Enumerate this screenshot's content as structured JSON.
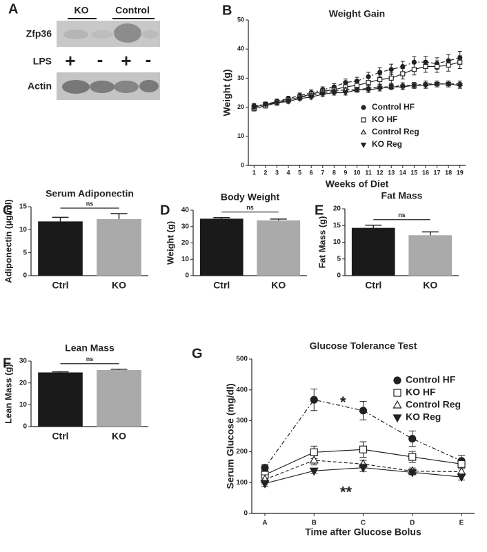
{
  "blot": {
    "panel_label": "A",
    "groups": [
      "KO",
      "Control"
    ],
    "rows": [
      "Zfp36",
      "LPS",
      "Actin"
    ],
    "lps": [
      "+",
      "-",
      "+",
      "-"
    ]
  },
  "chart_data": [
    {
      "type": "line",
      "panel_label": "B",
      "title": "Weight Gain",
      "x_label": "Weeks of Diet",
      "y_label": "Weight (g)",
      "x": [
        1,
        2,
        3,
        4,
        5,
        6,
        7,
        8,
        9,
        10,
        11,
        12,
        13,
        14,
        15,
        16,
        17,
        18,
        19
      ],
      "xlim": [
        0.5,
        19.5
      ],
      "xticks": [
        1,
        2,
        3,
        4,
        5,
        6,
        7,
        8,
        9,
        10,
        11,
        12,
        13,
        14,
        15,
        16,
        17,
        18,
        19
      ],
      "ylim": [
        0,
        50
      ],
      "yticks": [
        0,
        10,
        20,
        30,
        40,
        50
      ],
      "legend": "lower right",
      "series": [
        {
          "name": "Control HF",
          "color": "#222222",
          "marker": "circle",
          "filled": true,
          "line_style": "dashdot",
          "values": [
            20.5,
            21,
            22,
            23,
            24,
            25,
            26,
            27,
            28.5,
            29,
            30.5,
            32,
            33,
            34,
            35.5,
            35.5,
            35,
            36,
            37
          ],
          "errors": [
            0.8,
            0.8,
            0.8,
            0.8,
            0.9,
            1,
            1,
            1.1,
            1.2,
            1.3,
            1.5,
            1.6,
            1.8,
            1.8,
            1.9,
            2,
            2,
            2.1,
            2.2
          ]
        },
        {
          "name": "KO HF",
          "color": "#222222",
          "marker": "square",
          "filled": false,
          "line_style": "solid",
          "values": [
            19.5,
            20.5,
            21.5,
            22.5,
            23.5,
            24.5,
            25.5,
            26,
            27,
            27.5,
            28.5,
            29.5,
            30,
            31.5,
            33,
            34,
            34,
            34.5,
            35.5
          ],
          "errors": [
            0.8,
            0.8,
            0.8,
            0.8,
            0.9,
            1,
            1,
            1.1,
            1.2,
            1.3,
            1.5,
            1.6,
            1.8,
            1.8,
            1.9,
            2,
            2,
            2.1,
            2.2
          ]
        },
        {
          "name": "Control Reg",
          "color": "#222222",
          "marker": "triangle",
          "filled": false,
          "line_style": "dashed",
          "values": [
            20,
            21,
            22,
            22.5,
            23.5,
            24,
            25,
            25.5,
            26,
            26,
            26.5,
            27,
            27,
            27.5,
            27.5,
            28,
            28,
            28,
            28
          ],
          "errors": [
            0.6,
            0.6,
            0.6,
            0.7,
            0.7,
            0.7,
            0.8,
            0.8,
            0.8,
            0.8,
            0.9,
            0.9,
            0.9,
            0.9,
            1,
            1,
            1,
            1,
            1
          ]
        },
        {
          "name": "KO Reg",
          "color": "#222222",
          "marker": "invtriangle",
          "filled": true,
          "line_style": "solid",
          "values": [
            20,
            21,
            21.5,
            22,
            23,
            23.5,
            24.5,
            25,
            25,
            26,
            26,
            26.5,
            27,
            27,
            27.5,
            27.5,
            28,
            28,
            27.5
          ],
          "errors": [
            0.6,
            0.6,
            0.6,
            0.7,
            0.7,
            0.7,
            0.8,
            0.8,
            0.8,
            0.8,
            0.9,
            0.9,
            0.9,
            0.9,
            1,
            1,
            1,
            1,
            1
          ]
        }
      ]
    },
    {
      "type": "bar",
      "panel_label": "C",
      "title": "Serum Adiponectin",
      "y_label": "Adiponectin (µg/ml)",
      "categories": [
        "Ctrl",
        "KO"
      ],
      "values": [
        11.8,
        12.3
      ],
      "errors": [
        0.9,
        1.2
      ],
      "colors": [
        "#1a1a1a",
        "#aaaaaa"
      ],
      "ylim": [
        0,
        15
      ],
      "yticks": [
        0,
        5,
        10,
        15
      ],
      "annotation": "ns"
    },
    {
      "type": "bar",
      "panel_label": "D",
      "title": "Body Weight",
      "y_label": "Weight (g)",
      "categories": [
        "Ctrl",
        "KO"
      ],
      "values": [
        34.8,
        33.8
      ],
      "errors": [
        0.7,
        0.8
      ],
      "colors": [
        "#1a1a1a",
        "#aaaaaa"
      ],
      "ylim": [
        0,
        40
      ],
      "yticks": [
        0,
        10,
        20,
        30,
        40
      ],
      "annotation": "ns"
    },
    {
      "type": "bar",
      "panel_label": "E",
      "title": "Fat Mass",
      "y_label": "Fat Mass (g)",
      "categories": [
        "Ctrl",
        "KO"
      ],
      "values": [
        14.3,
        12.1
      ],
      "errors": [
        0.8,
        1.0
      ],
      "colors": [
        "#1a1a1a",
        "#aaaaaa"
      ],
      "ylim": [
        0,
        20
      ],
      "yticks": [
        0,
        5,
        10,
        15,
        20
      ],
      "annotation": "ns"
    },
    {
      "type": "bar",
      "panel_label": "F",
      "title": "Lean Mass",
      "y_label": "Lean Mass (g)",
      "categories": [
        "Ctrl",
        "KO"
      ],
      "values": [
        24.8,
        25.9
      ],
      "errors": [
        0.3,
        0.4
      ],
      "colors": [
        "#1a1a1a",
        "#aaaaaa"
      ],
      "ylim": [
        0,
        30
      ],
      "yticks": [
        0,
        10,
        20,
        30
      ],
      "annotation": "ns"
    },
    {
      "type": "catline",
      "panel_label": "G",
      "title": "Glucose Tolerance Test",
      "x_label": "Time after Glucose Bolus",
      "y_label": "Serum Glucose (mg/dl)",
      "categories": [
        "A",
        "B",
        "C",
        "D",
        "E"
      ],
      "ylim": [
        0,
        500
      ],
      "yticks": [
        0,
        100,
        200,
        300,
        400,
        500
      ],
      "legend": "upper right",
      "annotations": [
        "*",
        "**"
      ],
      "series": [
        {
          "name": "Control HF",
          "color": "#222222",
          "marker": "circle",
          "filled": true,
          "line_style": "dashdot",
          "values": [
            148,
            368,
            333,
            242,
            170
          ],
          "errors": [
            10,
            35,
            30,
            25,
            18
          ]
        },
        {
          "name": "KO HF",
          "color": "#222222",
          "marker": "square",
          "filled": false,
          "line_style": "solid",
          "values": [
            125,
            198,
            207,
            183,
            160
          ],
          "errors": [
            15,
            20,
            25,
            18,
            15
          ]
        },
        {
          "name": "Control Reg",
          "color": "#222222",
          "marker": "triangle",
          "filled": false,
          "line_style": "dashed",
          "values": [
            110,
            172,
            160,
            137,
            135
          ],
          "errors": [
            15,
            15,
            12,
            10,
            10
          ]
        },
        {
          "name": "KO Reg",
          "color": "#222222",
          "marker": "invtriangle",
          "filled": true,
          "line_style": "solid",
          "values": [
            97,
            138,
            148,
            133,
            118
          ],
          "errors": [
            10,
            8,
            12,
            8,
            10
          ]
        }
      ]
    }
  ]
}
